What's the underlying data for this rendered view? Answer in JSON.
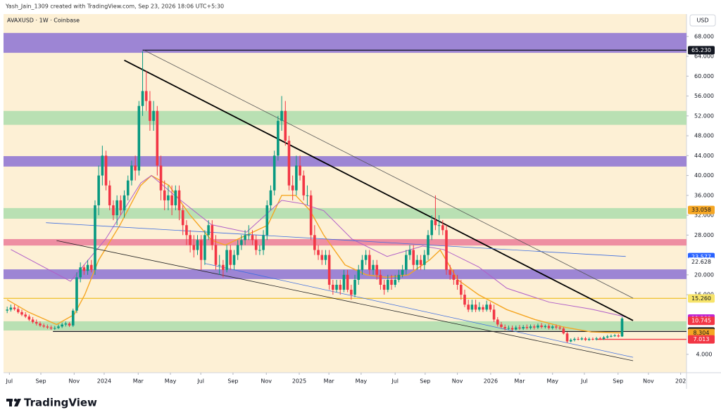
{
  "chart_data": {
    "type": "candlestick",
    "title": "AVAXUSD · 1W · Coinbase",
    "annotations": {
      "credit": "Yash_Jain_1309 created with TradingView.com, Sep 23, 2026 18:06 UTC+5:30",
      "currency": "USD",
      "brand": "TradingView"
    },
    "colors": {
      "up": "#089981",
      "down": "#f23645"
    },
    "xlim": [
      -1,
      185.6
    ],
    "ylim": [
      0.3,
      72.5
    ],
    "xticks": [
      {
        "value": 0.6,
        "label": "Jul"
      },
      {
        "value": 9.2,
        "label": "Sep"
      },
      {
        "value": 18.3,
        "label": "Nov"
      },
      {
        "value": 26.5,
        "label": "2024"
      },
      {
        "value": 35.8,
        "label": "Mar"
      },
      {
        "value": 44.6,
        "label": "May"
      },
      {
        "value": 52.9,
        "label": "Jul"
      },
      {
        "value": 61.7,
        "label": "Sep"
      },
      {
        "value": 70.8,
        "label": "Nov"
      },
      {
        "value": 79.8,
        "label": "2025"
      },
      {
        "value": 87.9,
        "label": "Mar"
      },
      {
        "value": 96.7,
        "label": "May"
      },
      {
        "value": 106,
        "label": "Jul"
      },
      {
        "value": 114.2,
        "label": "Sep"
      },
      {
        "value": 123,
        "label": "Nov"
      },
      {
        "value": 132.1,
        "label": "2026"
      },
      {
        "value": 140,
        "label": "Mar"
      },
      {
        "value": 149,
        "label": "May"
      },
      {
        "value": 157.7,
        "label": "Jul"
      },
      {
        "value": 166.9,
        "label": "Sep"
      },
      {
        "value": 175.2,
        "label": "Nov"
      },
      {
        "value": 184,
        "label": "202"
      }
    ],
    "yticks": [
      {
        "value": 4,
        "label": "4.000"
      },
      {
        "value": 16,
        "label": "16.000"
      },
      {
        "value": 20,
        "label": "20.000"
      },
      {
        "value": 28,
        "label": "28.000"
      },
      {
        "value": 32,
        "label": "32.000"
      },
      {
        "value": 36,
        "label": "36.000"
      },
      {
        "value": 40,
        "label": "40.000"
      },
      {
        "value": 44,
        "label": "44.000"
      },
      {
        "value": 48,
        "label": "48.000"
      },
      {
        "value": 52,
        "label": "52.000"
      },
      {
        "value": 56,
        "label": "56.000"
      },
      {
        "value": 60,
        "label": "60.000"
      },
      {
        "value": 64,
        "label": "64.000"
      },
      {
        "value": 68,
        "label": "68.000"
      }
    ],
    "open": [
      12.8,
      13,
      13.4,
      13.1,
      12.5,
      12,
      11.6,
      11,
      10.5,
      10.2,
      9.8,
      9.6,
      9.4,
      9.2,
      9.3,
      9.6,
      10,
      10.2,
      9.8,
      12.8,
      19.5,
      21.5,
      20.8,
      22,
      21,
      34,
      40,
      44,
      38,
      34,
      32,
      35,
      33,
      36,
      39,
      42,
      41,
      54,
      57,
      55,
      51,
      53,
      42,
      37,
      35,
      36,
      34,
      37,
      33,
      30,
      28,
      26,
      25,
      27,
      23,
      28,
      30,
      26,
      22,
      22,
      21,
      25,
      22,
      24,
      26,
      27,
      28,
      28,
      27,
      25,
      25,
      28,
      34,
      37,
      44,
      51,
      53,
      47,
      38,
      37,
      42,
      40,
      36,
      36,
      28,
      25,
      24,
      23,
      24,
      18,
      17,
      18,
      17,
      20,
      17,
      16,
      19,
      21,
      23,
      24,
      21,
      22,
      20,
      18,
      17,
      19,
      18,
      19,
      20,
      21,
      24,
      25,
      22,
      23,
      22,
      24,
      28,
      31,
      30,
      30,
      29,
      21,
      20,
      19,
      18,
      16,
      14,
      13,
      14,
      13,
      13.5,
      13,
      14,
      13,
      11,
      10,
      9.5,
      9.2,
      9.3,
      9,
      9.4,
      9.2,
      9.5,
      9.3,
      9.6,
      9.4,
      9.8,
      9.5,
      9.7,
      9.3,
      9.6,
      9.4,
      9.2,
      8.2,
      6.6,
      6.9,
      7.1,
      7,
      7.2,
      6.9,
      7.1,
      7,
      7.2,
      7.1,
      7.4,
      7.6,
      7.7,
      7.8,
      7.6
    ],
    "high": [
      13.6,
      14,
      14,
      13.6,
      13,
      12.5,
      12,
      11.5,
      11,
      10.6,
      10.2,
      10,
      9.8,
      9.7,
      10,
      10.4,
      10.6,
      10.5,
      13.2,
      20.5,
      22.5,
      22,
      23,
      23,
      35,
      42,
      46,
      45,
      39,
      35,
      36,
      36,
      37,
      40,
      43,
      44,
      55,
      65,
      61,
      57,
      55,
      54,
      44,
      39,
      38,
      38,
      38,
      38,
      34,
      31,
      29,
      28,
      28,
      28,
      29,
      31,
      31,
      28,
      24,
      23,
      26,
      26,
      25,
      27,
      28,
      29,
      30,
      29,
      28,
      26,
      29,
      35,
      38,
      45,
      52,
      56,
      55,
      48,
      40,
      44,
      44,
      41,
      38,
      37,
      30,
      26,
      25,
      25,
      25,
      19,
      19,
      19,
      21,
      21,
      18,
      20,
      22,
      24,
      25,
      25,
      23,
      23,
      21,
      19,
      20,
      20,
      20,
      21,
      22,
      25,
      26,
      26,
      24,
      24,
      25,
      29,
      32,
      36,
      32,
      31,
      30,
      22,
      21,
      20,
      19,
      17,
      15,
      15,
      15,
      14.5,
      14,
      14.8,
      14.5,
      14,
      11.5,
      10.5,
      10,
      9.8,
      9.8,
      9.8,
      9.9,
      9.9,
      10,
      10,
      10,
      10.2,
      10.3,
      10,
      10.1,
      9.9,
      10,
      9.8,
      9.5,
      8.5,
      7.2,
      7.4,
      7.5,
      7.5,
      7.5,
      7.4,
      7.4,
      7.5,
      7.5,
      7.7,
      7.9,
      8,
      8.1,
      8.1,
      11.5
    ],
    "low": [
      12.3,
      12.6,
      12.8,
      12.2,
      11.7,
      11.3,
      10.7,
      10.2,
      9.8,
      9.5,
      9.3,
      9.1,
      8.9,
      8.9,
      9.1,
      9.3,
      9.6,
      9.5,
      9.5,
      12.3,
      18.5,
      20,
      20,
      20.5,
      20,
      32,
      38,
      37,
      33,
      31,
      30,
      32,
      31.5,
      35,
      38,
      39,
      40,
      52,
      53,
      49,
      49,
      40,
      35,
      33,
      33,
      32,
      33,
      31,
      28,
      26,
      24.5,
      23.5,
      24,
      21,
      22,
      27,
      25,
      21,
      20,
      19.5,
      20.5,
      21,
      21,
      23,
      25,
      26,
      27,
      26,
      24,
      24,
      24,
      27,
      33,
      36,
      43,
      49,
      46,
      37,
      35,
      36,
      39,
      35,
      34,
      27,
      24,
      23,
      22,
      22,
      17,
      16,
      16.5,
      16,
      16.5,
      16.5,
      15,
      15.5,
      18,
      20,
      22,
      20,
      20,
      19,
      17,
      16,
      16.5,
      17,
      17.5,
      18.5,
      19.5,
      20,
      23,
      21,
      21,
      21,
      21,
      23,
      27,
      29,
      28,
      28,
      20,
      19,
      18,
      17,
      15,
      13.5,
      12.5,
      12.5,
      12.5,
      12.6,
      12.5,
      12.6,
      12.5,
      10.5,
      9.6,
      9.2,
      8.8,
      8.9,
      8.7,
      8.8,
      8.9,
      8.9,
      9,
      9,
      9,
      9.1,
      9.2,
      9.2,
      9,
      9,
      9,
      8.9,
      8,
      6.3,
      6.4,
      6.6,
      6.8,
      6.8,
      6.7,
      6.7,
      6.8,
      6.8,
      6.9,
      6.9,
      7.2,
      7.4,
      7.5,
      7.4,
      7.5
    ],
    "close": [
      13,
      13.4,
      13.1,
      12.5,
      12,
      11.6,
      11,
      10.5,
      10.2,
      9.8,
      9.6,
      9.4,
      9.2,
      9.3,
      9.6,
      10,
      10.2,
      9.8,
      12.8,
      19.5,
      21.5,
      20.8,
      22,
      21,
      34,
      40,
      44,
      38,
      34,
      32,
      35,
      33,
      36,
      39,
      42,
      41,
      54,
      57,
      55,
      51,
      53,
      42,
      37,
      35,
      36,
      34,
      37,
      33,
      30,
      28,
      26,
      25,
      27,
      23,
      28,
      30,
      26,
      22,
      22,
      21,
      25,
      22,
      24,
      26,
      27,
      28,
      28,
      27,
      25,
      25,
      28,
      34,
      37,
      44,
      51,
      53,
      47,
      38,
      37,
      42,
      40,
      36,
      36,
      28,
      25,
      24,
      23,
      24,
      18,
      17,
      18,
      17,
      20,
      17,
      16,
      19,
      21,
      23,
      24,
      21,
      22,
      20,
      18,
      17,
      19,
      18,
      19,
      20,
      21,
      24,
      25,
      22,
      23,
      22,
      24,
      28,
      31,
      30,
      30,
      29,
      21,
      20,
      19,
      18,
      16,
      14,
      13,
      14,
      13,
      13.5,
      13,
      14,
      13,
      11,
      10,
      9.5,
      9.2,
      9.3,
      9,
      9.4,
      9.2,
      9.5,
      9.3,
      9.6,
      9.4,
      9.8,
      9.5,
      9.7,
      9.3,
      9.6,
      9.4,
      9.2,
      8.2,
      6.6,
      6.9,
      7.1,
      7,
      7.2,
      6.9,
      7.1,
      7,
      7.2,
      7.1,
      7.4,
      7.6,
      7.7,
      7.8,
      7.6,
      11.2
    ],
    "zones": [
      {
        "low": 64.7,
        "high": 68.7,
        "color": "#9d85d4"
      },
      {
        "low": 50.2,
        "high": 53,
        "color": "#b9e0b3"
      },
      {
        "low": 41.8,
        "high": 43.9,
        "color": "#9d85d4"
      },
      {
        "low": 31.3,
        "high": 33.45,
        "color": "#b9e0b3"
      },
      {
        "low": 25.9,
        "high": 27.2,
        "color": "#ee8ea2"
      },
      {
        "low": 19.15,
        "high": 21.1,
        "color": "#9d85d4"
      },
      {
        "low": 8.8,
        "high": 10.65,
        "color": "#b9e0b3"
      }
    ],
    "lines": [
      {
        "x": [
          0,
          5.8,
          13.5,
          18.3,
          21.2,
          25,
          30.8,
          36.5,
          39.4,
          44.2,
          50,
          55.8,
          59.6,
          65.4,
          71.2,
          75,
          78.8,
          82.7,
          86.5,
          92.3,
          98.1,
          103.8,
          109.6,
          115.4,
          118.3,
          123.1,
          128.8,
          136.5,
          144.2,
          151.9,
          159.6,
          168.3
        ],
        "values": [
          15,
          12.5,
          10,
          12,
          16,
          23,
          30,
          38,
          40,
          38,
          32,
          27,
          26,
          28,
          30,
          36,
          36,
          33,
          28,
          22,
          20,
          19.5,
          20,
          23,
          25,
          19,
          16,
          13,
          11,
          9.5,
          8.5,
          8.3
        ],
        "color": "#f5a623",
        "width": 1.4
      },
      {
        "x": [
          1,
          17.3,
          26.9,
          36.5,
          39.4,
          46.2,
          55.8,
          65.4,
          75,
          80.8,
          86.5,
          94.2,
          103.8,
          113.5,
          119.2,
          128.8,
          136.5,
          148.1,
          159.6,
          169.2
        ],
        "values": [
          25.1,
          18.7,
          27.2,
          38.5,
          40,
          35.7,
          30.1,
          28.6,
          35,
          34.3,
          32.9,
          27.2,
          23.7,
          25.8,
          25.1,
          21.6,
          17.3,
          14.5,
          13.1,
          11.5
        ],
        "color": "#b15fc8",
        "width": 1
      },
      {
        "x": [
          32,
          171
        ],
        "values": [
          63.2,
          10.8
        ],
        "color": "#000000",
        "width": 1.8
      },
      {
        "x": [
          37.5,
          171
        ],
        "values": [
          65.2,
          15.3
        ],
        "color": "#555555",
        "width": 0.8
      },
      {
        "x": [
          13.5,
          171
        ],
        "values": [
          26.9,
          2.7
        ],
        "color": "#222222",
        "width": 0.8
      },
      {
        "x": [
          10.6,
          169
        ],
        "values": [
          30.5,
          23.7
        ],
        "color": "#3d6de0",
        "width": 0.8
      },
      {
        "x": [
          54,
          171
        ],
        "values": [
          22.3,
          3.4
        ],
        "color": "#3d6de0",
        "width": 0.8
      }
    ],
    "price_labels": [
      {
        "value": 65.23,
        "label": "65.230",
        "bg": "#131722",
        "text_color": "#ffffff",
        "line_from": 37,
        "line_color": "#131722"
      },
      {
        "value": 33.058,
        "label": "33.058",
        "bg": "#f5a623",
        "text_color": "#131722"
      },
      {
        "value": 23.577,
        "label": "23.577",
        "bg": "#2962ff",
        "text_color": "#ffffff"
      },
      {
        "value": 22.628,
        "label": "22.628",
        "bg": "#ffffff",
        "text_color": "#131722"
      },
      {
        "value": 15.26,
        "label": "15.260",
        "bg": "#f7e46a",
        "text_color": "#131722",
        "line_from": -1,
        "line_color": "#f0c53a"
      },
      {
        "value": 11.199,
        "label": "11.199",
        "bg": "#c026d3",
        "text_color": "#ffffff"
      },
      {
        "value": 10.745,
        "label": "10.745",
        "bg": "#f23645",
        "text_color": "#ffffff"
      },
      {
        "value": 8.598,
        "label": "8.598",
        "bg": "#131722",
        "text_color": "#ffffff",
        "line_from": 12.5,
        "line_color": "#131722"
      },
      {
        "value": 8.304,
        "label": "8.304",
        "bg": "#f5a623",
        "text_color": "#131722"
      },
      {
        "value": 7.013,
        "label": "7.013",
        "bg": "#f23645",
        "text_color": "#ffffff",
        "line_from": 161,
        "line_color": "#f23645"
      }
    ]
  }
}
